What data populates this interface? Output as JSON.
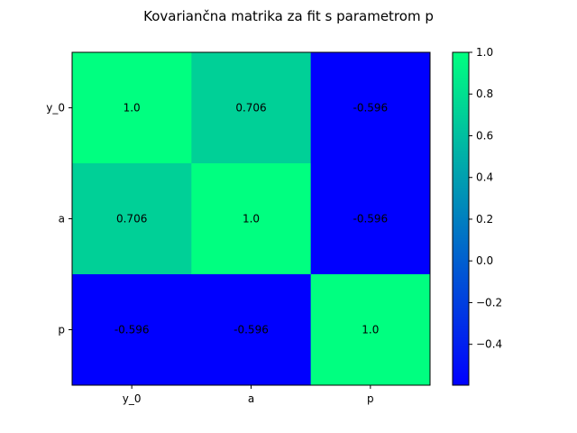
{
  "chart_data": {
    "type": "heatmap",
    "title": "Kovariančna matrika za fit s parametrom p",
    "xlabel": "",
    "ylabel": "",
    "rows": [
      "y_0",
      "a",
      "p"
    ],
    "columns": [
      "y_0",
      "a",
      "p"
    ],
    "values": [
      [
        1.0,
        0.706,
        -0.596
      ],
      [
        0.706,
        1.0,
        -0.596
      ],
      [
        -0.596,
        -0.596,
        1.0
      ]
    ],
    "cell_labels": [
      [
        "1.0",
        "0.706",
        "-0.596"
      ],
      [
        "0.706",
        "1.0",
        "-0.596"
      ],
      [
        "-0.596",
        "-0.596",
        "1.0"
      ]
    ],
    "colormap": "winter",
    "colormap_stops": [
      "#0000ff",
      "#00ff80"
    ],
    "color_range": [
      -0.596,
      1.0
    ],
    "colorbar": {
      "ticks": [
        1.0,
        0.8,
        0.6,
        0.4,
        0.2,
        0.0,
        -0.2,
        -0.4
      ],
      "tick_labels": [
        "1.0",
        "0.8",
        "0.6",
        "0.4",
        "0.2",
        "0.0",
        "−0.2",
        "−0.4"
      ]
    },
    "grid": false
  }
}
